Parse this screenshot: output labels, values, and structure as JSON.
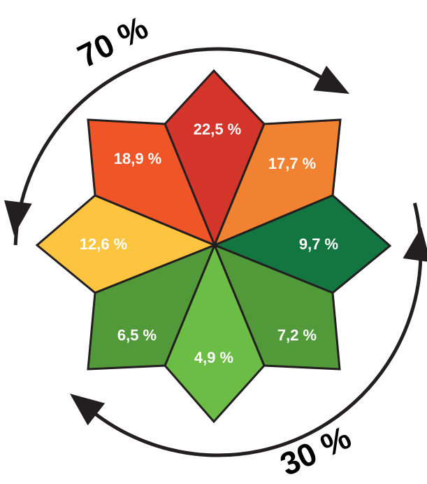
{
  "chart_data": {
    "type": "pie",
    "categories": [
      "top",
      "top-right",
      "right",
      "bottom-right",
      "bottom",
      "bottom-left",
      "left",
      "top-left"
    ],
    "values": [
      22.5,
      17.7,
      9.7,
      7.2,
      4.9,
      6.5,
      12.6,
      18.9
    ],
    "labels": [
      "22,5 %",
      "17,7 %",
      "9,7 %",
      "7,2 %",
      "4,9 %",
      "6,5 %",
      "12,6 %",
      "18,9 %"
    ],
    "colors": [
      "#d3352b",
      "#f08232",
      "#137540",
      "#52993a",
      "#6bbd45",
      "#52993a",
      "#fcc43f",
      "#ef5526"
    ],
    "groups": [
      {
        "label": "70 %",
        "value": 70
      },
      {
        "label": "30 %",
        "value": 30
      }
    ],
    "title": "",
    "xlabel": "",
    "ylabel": ""
  }
}
